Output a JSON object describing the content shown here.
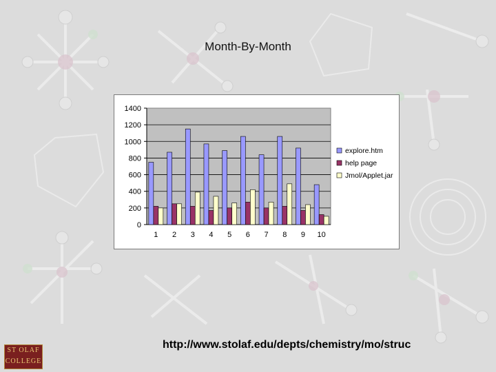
{
  "slide": {
    "title": "Month-By-Month",
    "url": "http://www.stolaf.edu/depts/chemistry/mo/struc",
    "logo_top": "ST OLAF",
    "logo_bottom": "COLLEGE"
  },
  "colors": {
    "background": "#dcdcdc",
    "plot_area": "#c0c0c0",
    "series1": "#9999ff",
    "series2": "#993366",
    "series3": "#ffffcc"
  },
  "chart_data": {
    "type": "bar",
    "title": "",
    "xlabel": "",
    "ylabel": "",
    "categories": [
      "1",
      "2",
      "3",
      "4",
      "5",
      "6",
      "7",
      "8",
      "9",
      "10"
    ],
    "ylim": [
      0,
      1400
    ],
    "yticks": [
      0,
      200,
      400,
      600,
      800,
      1000,
      1200,
      1400
    ],
    "grid": true,
    "legend": "right",
    "series": [
      {
        "name": "explore.htm",
        "color": "#9999ff",
        "values": [
          750,
          870,
          1150,
          970,
          890,
          1060,
          840,
          1060,
          920,
          480
        ]
      },
      {
        "name": "help page",
        "color": "#993366",
        "values": [
          220,
          250,
          220,
          170,
          200,
          270,
          200,
          220,
          170,
          120
        ]
      },
      {
        "name": "Jmol/Applet.jar",
        "color": "#ffffcc",
        "values": [
          200,
          250,
          390,
          340,
          260,
          420,
          270,
          490,
          240,
          100
        ]
      }
    ]
  }
}
